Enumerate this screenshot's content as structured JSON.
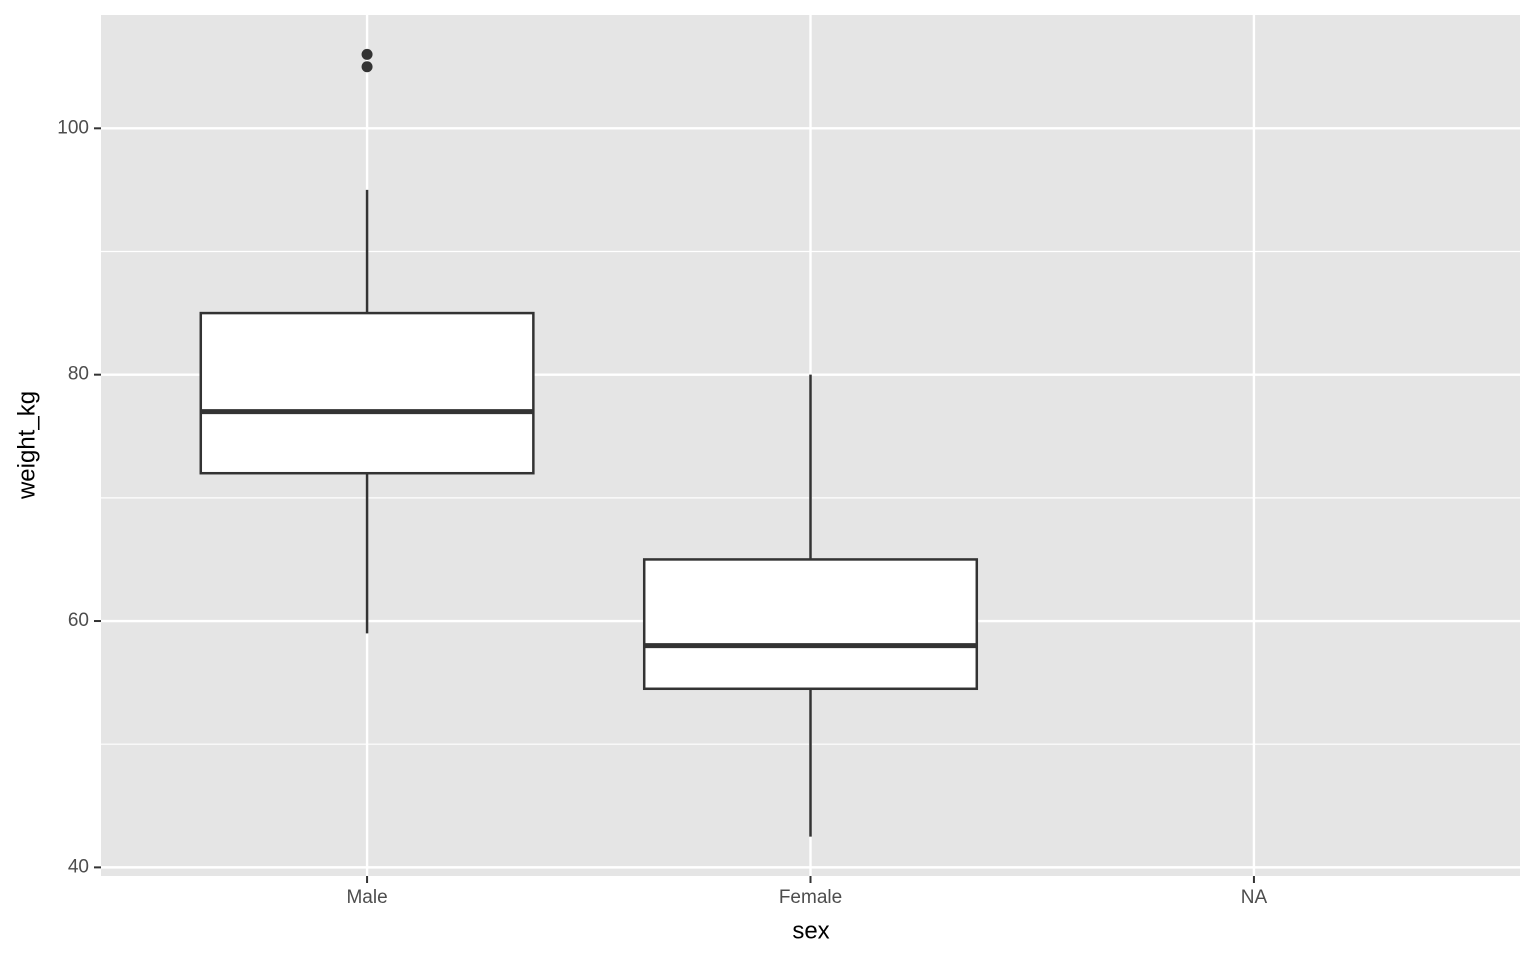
{
  "chart_data": {
    "type": "box",
    "x_label": "sex",
    "y_label": "weight_kg",
    "categories": [
      "Male",
      "Female",
      "NA"
    ],
    "boxes": [
      {
        "low": 59,
        "q1": 72,
        "median": 77,
        "q3": 85,
        "high": 95,
        "outliers": [
          105,
          106
        ]
      },
      {
        "low": 42.5,
        "q1": 54.5,
        "median": 58,
        "q3": 65,
        "high": 80,
        "outliers": []
      },
      null
    ],
    "ylim": [
      39.3,
      109.2
    ],
    "yticks": [
      40,
      60,
      80,
      100
    ],
    "minor_yticks": [
      50,
      70,
      90
    ],
    "grid": true,
    "panel_color": "#e5e5e5",
    "box_fill": "#ffffff",
    "line_color": "#333333"
  }
}
